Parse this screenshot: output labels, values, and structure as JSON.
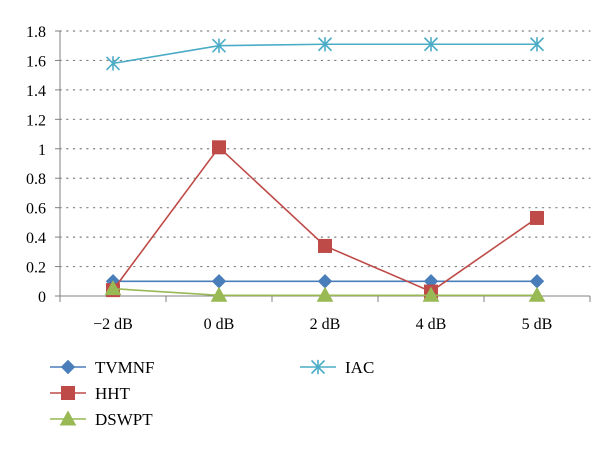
{
  "chart_data": {
    "type": "line",
    "categories": [
      "−2 dB",
      "0 dB",
      "2 dB",
      "4 dB",
      "5 dB"
    ],
    "y_ticks": [
      "0",
      "0.2",
      "0.4",
      "0.6",
      "0.8",
      "1",
      "1.2",
      "1.4",
      "1.6",
      "1.8"
    ],
    "ylim": [
      0,
      1.8
    ],
    "grid": "horizontal-dotted",
    "legend_position": "bottom",
    "series": [
      {
        "name": "TVMNF",
        "values": [
          0.1,
          0.1,
          0.1,
          0.1,
          0.1
        ],
        "color": "#4a7ebb",
        "marker": "diamond"
      },
      {
        "name": "HHT",
        "values": [
          0.04,
          1.01,
          0.34,
          0.03,
          0.53
        ],
        "color": "#be4b48",
        "marker": "square"
      },
      {
        "name": "DSWPT",
        "values": [
          0.05,
          0.005,
          0.005,
          0.005,
          0.005
        ],
        "color": "#98b954",
        "marker": "triangle"
      },
      {
        "name": "IAC",
        "values": [
          1.58,
          1.7,
          1.71,
          1.71,
          1.71
        ],
        "color": "#4bacc6",
        "marker": "star"
      }
    ]
  }
}
